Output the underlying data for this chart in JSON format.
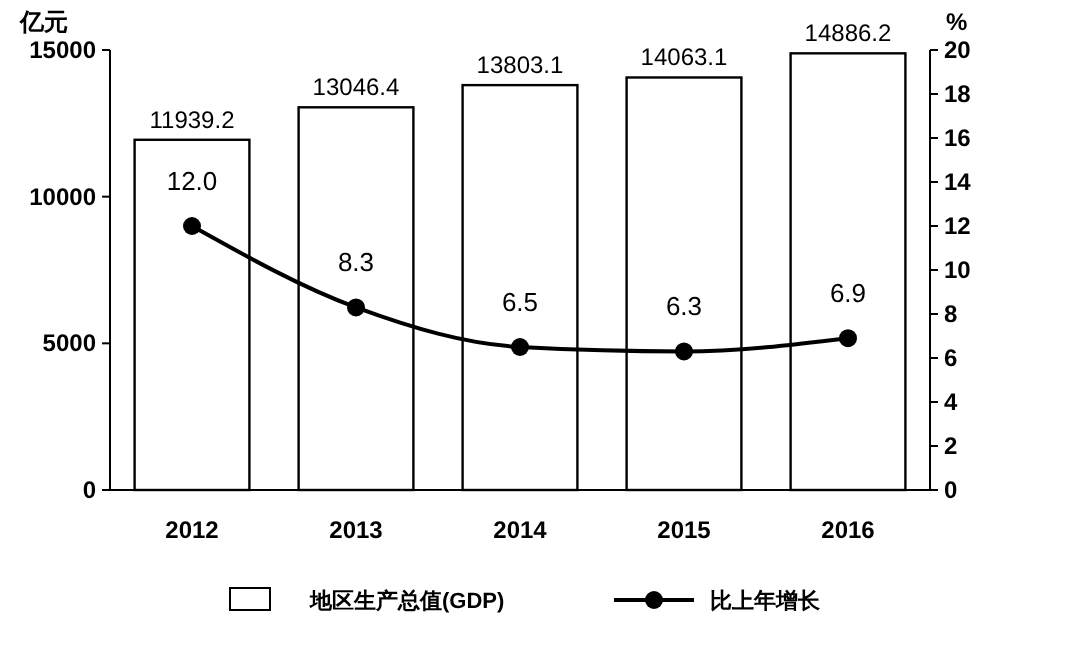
{
  "chart_data": {
    "type": "bar",
    "categories": [
      "2012",
      "2013",
      "2014",
      "2015",
      "2016"
    ],
    "series": [
      {
        "name": "地区生产总值(GDP)",
        "color": "#ffffff",
        "values": [
          11939.2,
          13046.4,
          13803.1,
          14063.1,
          14886.2
        ],
        "value_labels": [
          "11939.2",
          "13046.4",
          "13803.1",
          "14063.1",
          "14886.2"
        ]
      },
      {
        "name": "比上年增长",
        "type": "line",
        "axis": "y2",
        "color": "#000000",
        "values": [
          12.0,
          8.3,
          6.5,
          6.3,
          6.9
        ],
        "value_labels": [
          "12.0",
          "8.3",
          "6.5",
          "6.3",
          "6.9"
        ]
      }
    ],
    "ylabel": "亿元",
    "y2label": "%",
    "ylim": [
      0,
      15000
    ],
    "yticks": [
      0,
      5000,
      10000,
      15000
    ],
    "y2lim": [
      0,
      20
    ],
    "y2ticks": [
      0,
      2,
      4,
      6,
      8,
      10,
      12,
      14,
      16,
      18,
      20
    ],
    "legend": "bottom",
    "marker": "circle",
    "line_style": "solid",
    "grid": false
  }
}
